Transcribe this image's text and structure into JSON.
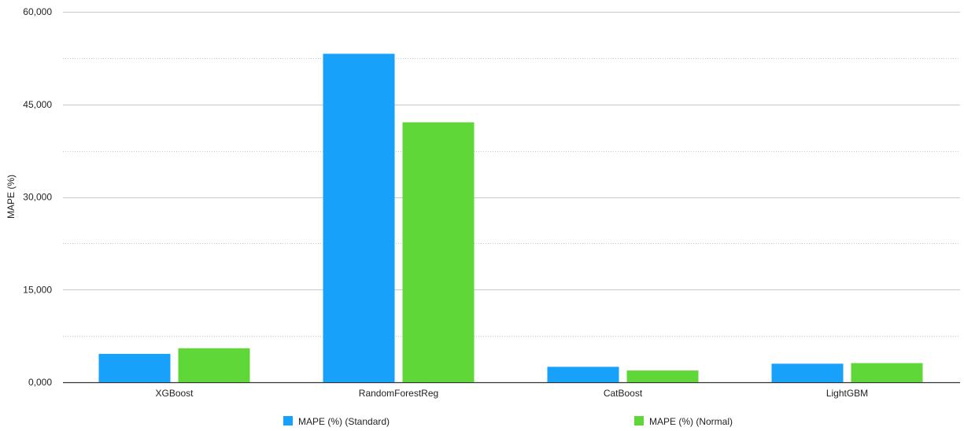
{
  "chart_data": {
    "type": "bar",
    "title": "",
    "xlabel": "",
    "ylabel": "MAPE (%)",
    "categories": [
      "XGBoost",
      "RandomForestReg",
      "CatBoost",
      "LightGBM"
    ],
    "series": [
      {
        "name": "MAPE (%) (Standard)",
        "color": "#17a1fa",
        "values": [
          4.6,
          53.2,
          2.5,
          3.0
        ]
      },
      {
        "name": "MAPE (%) (Normal)",
        "color": "#5fd738",
        "values": [
          5.5,
          42.1,
          1.9,
          3.1
        ]
      }
    ],
    "ylim": [
      0,
      60
    ],
    "yticks": [
      0,
      15,
      30,
      45,
      60
    ],
    "ytick_labels": [
      "0,000",
      "15,000",
      "30,000",
      "45,000",
      "60,000"
    ],
    "minor_gridlines": [
      7.5,
      22.5,
      37.5,
      52.5
    ],
    "grid": true,
    "legend_position": "bottom"
  }
}
